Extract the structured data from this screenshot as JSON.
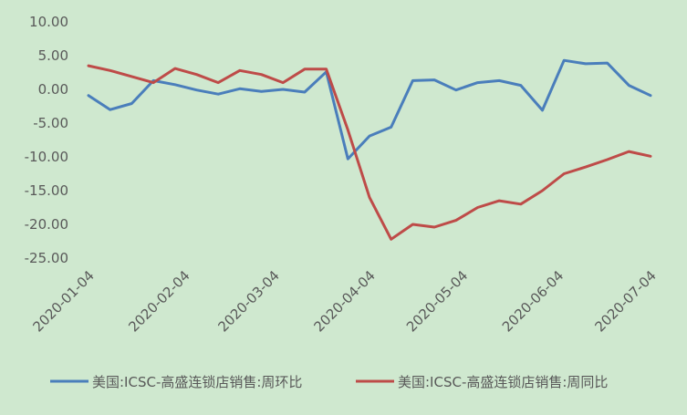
{
  "chart_data": {
    "type": "line",
    "title": "",
    "xlabel": "",
    "ylabel": "",
    "ylim": [
      -25,
      10
    ],
    "yticks": [
      "10.00",
      "5.00",
      "0.00",
      "-5.00",
      "-10.00",
      "-15.00",
      "-20.00",
      "-25.00"
    ],
    "yticks_values": [
      10,
      5,
      0,
      -5,
      -10,
      -15,
      -20,
      -25
    ],
    "x_tick_labels": [
      "2020-01-04",
      "2020-02-04",
      "2020-03-04",
      "2020-04-04",
      "2020-05-04",
      "2020-06-04",
      "2020-07-04"
    ],
    "x": [
      "2020-01-04",
      "2020-01-11",
      "2020-01-18",
      "2020-01-25",
      "2020-02-01",
      "2020-02-08",
      "2020-02-15",
      "2020-02-22",
      "2020-02-29",
      "2020-03-07",
      "2020-03-14",
      "2020-03-21",
      "2020-03-28",
      "2020-04-04",
      "2020-04-11",
      "2020-04-18",
      "2020-04-25",
      "2020-05-02",
      "2020-05-09",
      "2020-05-16",
      "2020-05-23",
      "2020-05-30",
      "2020-06-06",
      "2020-06-13",
      "2020-06-20",
      "2020-06-27",
      "2020-07-04"
    ],
    "grid": false,
    "legend_position": "bottom",
    "series": [
      {
        "name": "美国:ICSC-高盛连锁店销售:周环比",
        "color": "#4a7ebb",
        "values": [
          -0.9,
          -3.0,
          -2.1,
          1.3,
          0.7,
          -0.1,
          -0.7,
          0.1,
          -0.3,
          0.0,
          -0.4,
          2.6,
          -10.3,
          -6.9,
          -5.6,
          1.3,
          1.4,
          -0.1,
          1.0,
          1.3,
          0.6,
          -3.1,
          4.3,
          3.8,
          3.9,
          0.6,
          -0.9
        ]
      },
      {
        "name": "美国:ICSC-高盛连锁店销售:周同比",
        "color": "#be4b48",
        "values": [
          3.5,
          2.8,
          1.9,
          1.0,
          3.1,
          2.2,
          1.0,
          2.8,
          2.2,
          1.0,
          3.0,
          3.0,
          -6.0,
          -16.0,
          -22.2,
          -20.0,
          -20.4,
          -19.4,
          -17.5,
          -16.5,
          -17.0,
          -15.0,
          -12.5,
          -11.5,
          -10.4,
          -9.2,
          -9.9
        ]
      }
    ]
  }
}
